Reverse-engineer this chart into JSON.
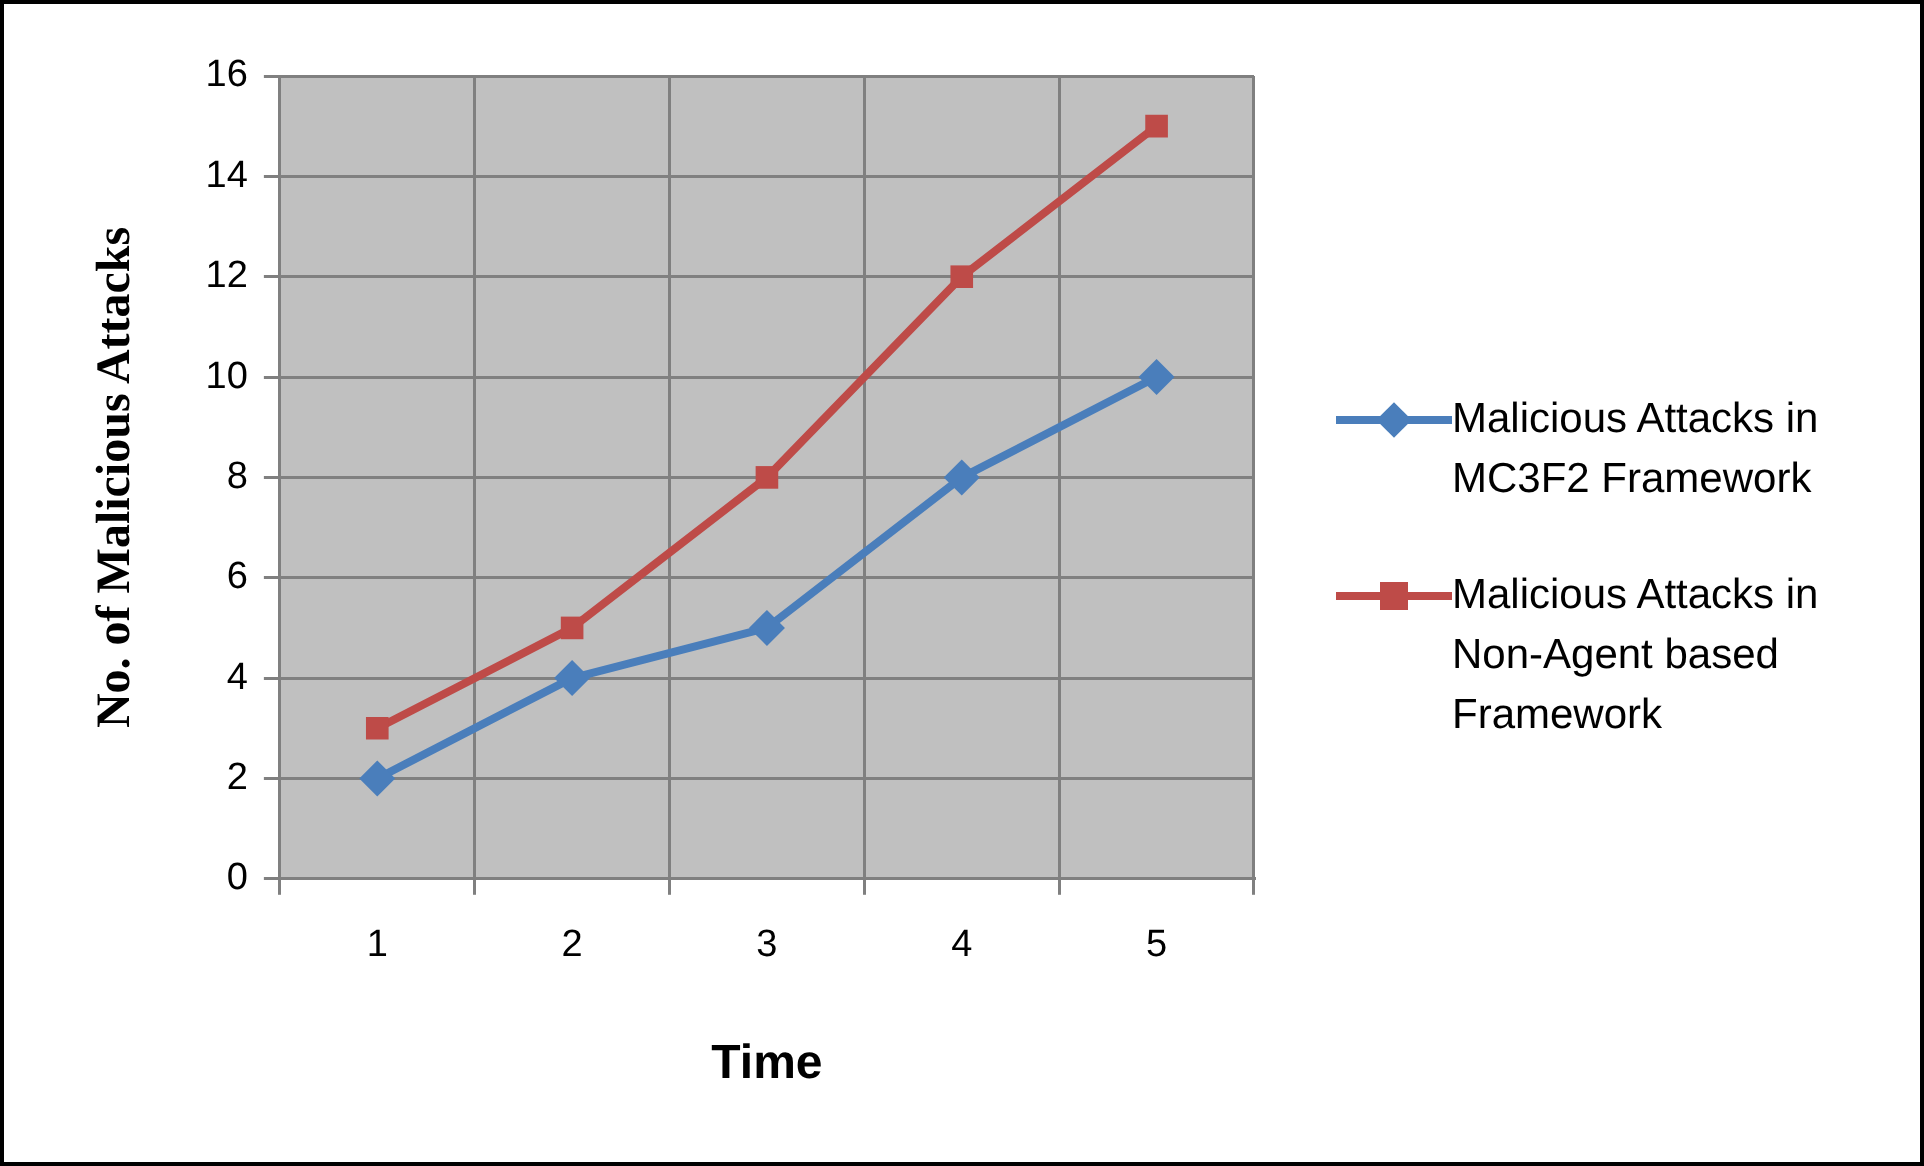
{
  "chart_data": {
    "type": "line",
    "xlabel": "Time",
    "ylabel": "No. of Malicious Attacks",
    "categories": [
      "1",
      "2",
      "3",
      "4",
      "5"
    ],
    "series": [
      {
        "name": "Malicious Attacks in MC3F2 Framework",
        "color": "#4a7ebb",
        "values": [
          2,
          4,
          5,
          8,
          10
        ],
        "marker": "diamond"
      },
      {
        "name": "Malicious Attacks in Non-Agent based Framework",
        "color": "#be4b48",
        "values": [
          3,
          5,
          8,
          12,
          15
        ],
        "marker": "square"
      }
    ],
    "ylim": [
      0,
      16
    ],
    "yticks": [
      0,
      2,
      4,
      6,
      8,
      10,
      12,
      14,
      16
    ],
    "grid": true,
    "legend": "right"
  }
}
